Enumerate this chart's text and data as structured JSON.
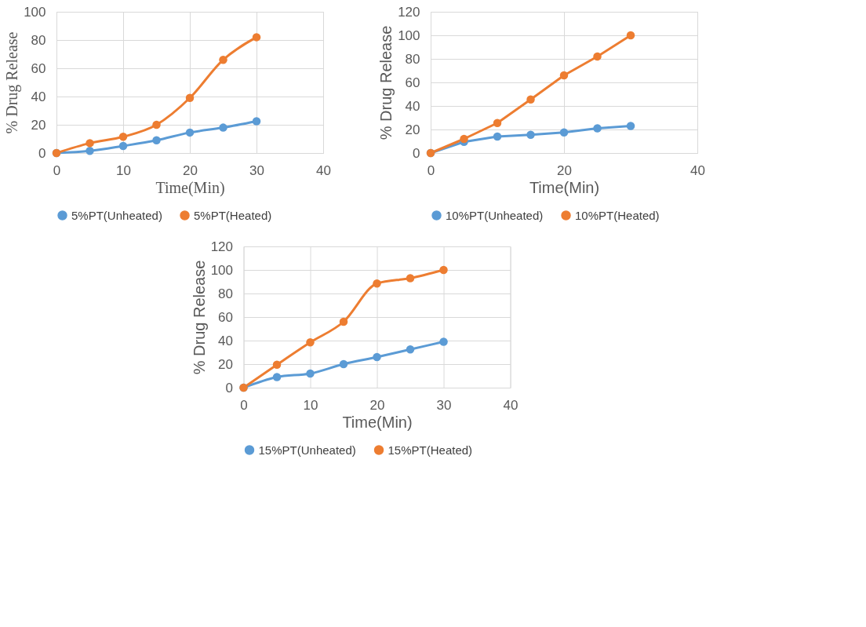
{
  "chart_data": [
    {
      "type": "line",
      "xlabel": "Time(Min)",
      "ylabel": "% Drug Release",
      "x": [
        0,
        5,
        10,
        15,
        20,
        25,
        30
      ],
      "xlim": [
        0,
        40
      ],
      "xticks": [
        0,
        10,
        20,
        30,
        40
      ],
      "ylim": [
        0,
        100
      ],
      "yticks": [
        0,
        20,
        40,
        60,
        80,
        100
      ],
      "grid": true,
      "legend": "bottom",
      "marker": "circle",
      "line_style": "solid",
      "series": [
        {
          "name": "5%PT(Unheated)",
          "color": "#5b9bd5",
          "values": [
            0,
            1.5,
            5,
            9,
            14.5,
            18,
            22.5
          ]
        },
        {
          "name": "5%PT(Heated)",
          "color": "#ed7d31",
          "values": [
            0,
            7,
            11.5,
            20,
            39,
            66,
            82
          ]
        }
      ]
    },
    {
      "type": "line",
      "xlabel": "Time(Min)",
      "ylabel": "% Drug Release",
      "x": [
        0,
        5,
        10,
        15,
        20,
        25,
        30
      ],
      "xlim": [
        0,
        40
      ],
      "xticks": [
        0,
        20,
        40
      ],
      "ylim": [
        0,
        120
      ],
      "yticks": [
        0,
        20,
        40,
        60,
        80,
        100,
        120
      ],
      "grid": true,
      "legend": "bottom",
      "marker": "circle",
      "line_style": "solid",
      "series": [
        {
          "name": "10%PT(Unheated)",
          "color": "#5b9bd5",
          "values": [
            0,
            9.5,
            14,
            15.5,
            17.5,
            21,
            23
          ]
        },
        {
          "name": "10%PT(Heated)",
          "color": "#ed7d31",
          "values": [
            0,
            12,
            25.5,
            45.5,
            66,
            82,
            100
          ]
        }
      ]
    },
    {
      "type": "line",
      "xlabel": "Time(Min)",
      "ylabel": "% Drug Release",
      "x": [
        0,
        5,
        10,
        15,
        20,
        25,
        30
      ],
      "xlim": [
        0,
        40
      ],
      "xticks": [
        0,
        10,
        20,
        30,
        40
      ],
      "ylim": [
        0,
        120
      ],
      "yticks": [
        0,
        20,
        40,
        60,
        80,
        100,
        120
      ],
      "grid": true,
      "legend": "bottom",
      "marker": "circle",
      "line_style": "solid",
      "series": [
        {
          "name": "15%PT(Unheated)",
          "color": "#5b9bd5",
          "values": [
            0,
            9,
            12,
            20,
            26,
            32.5,
            39
          ]
        },
        {
          "name": "15%PT(Heated)",
          "color": "#ed7d31",
          "values": [
            0,
            19.5,
            38.5,
            56,
            88.5,
            93,
            100
          ]
        }
      ]
    }
  ]
}
